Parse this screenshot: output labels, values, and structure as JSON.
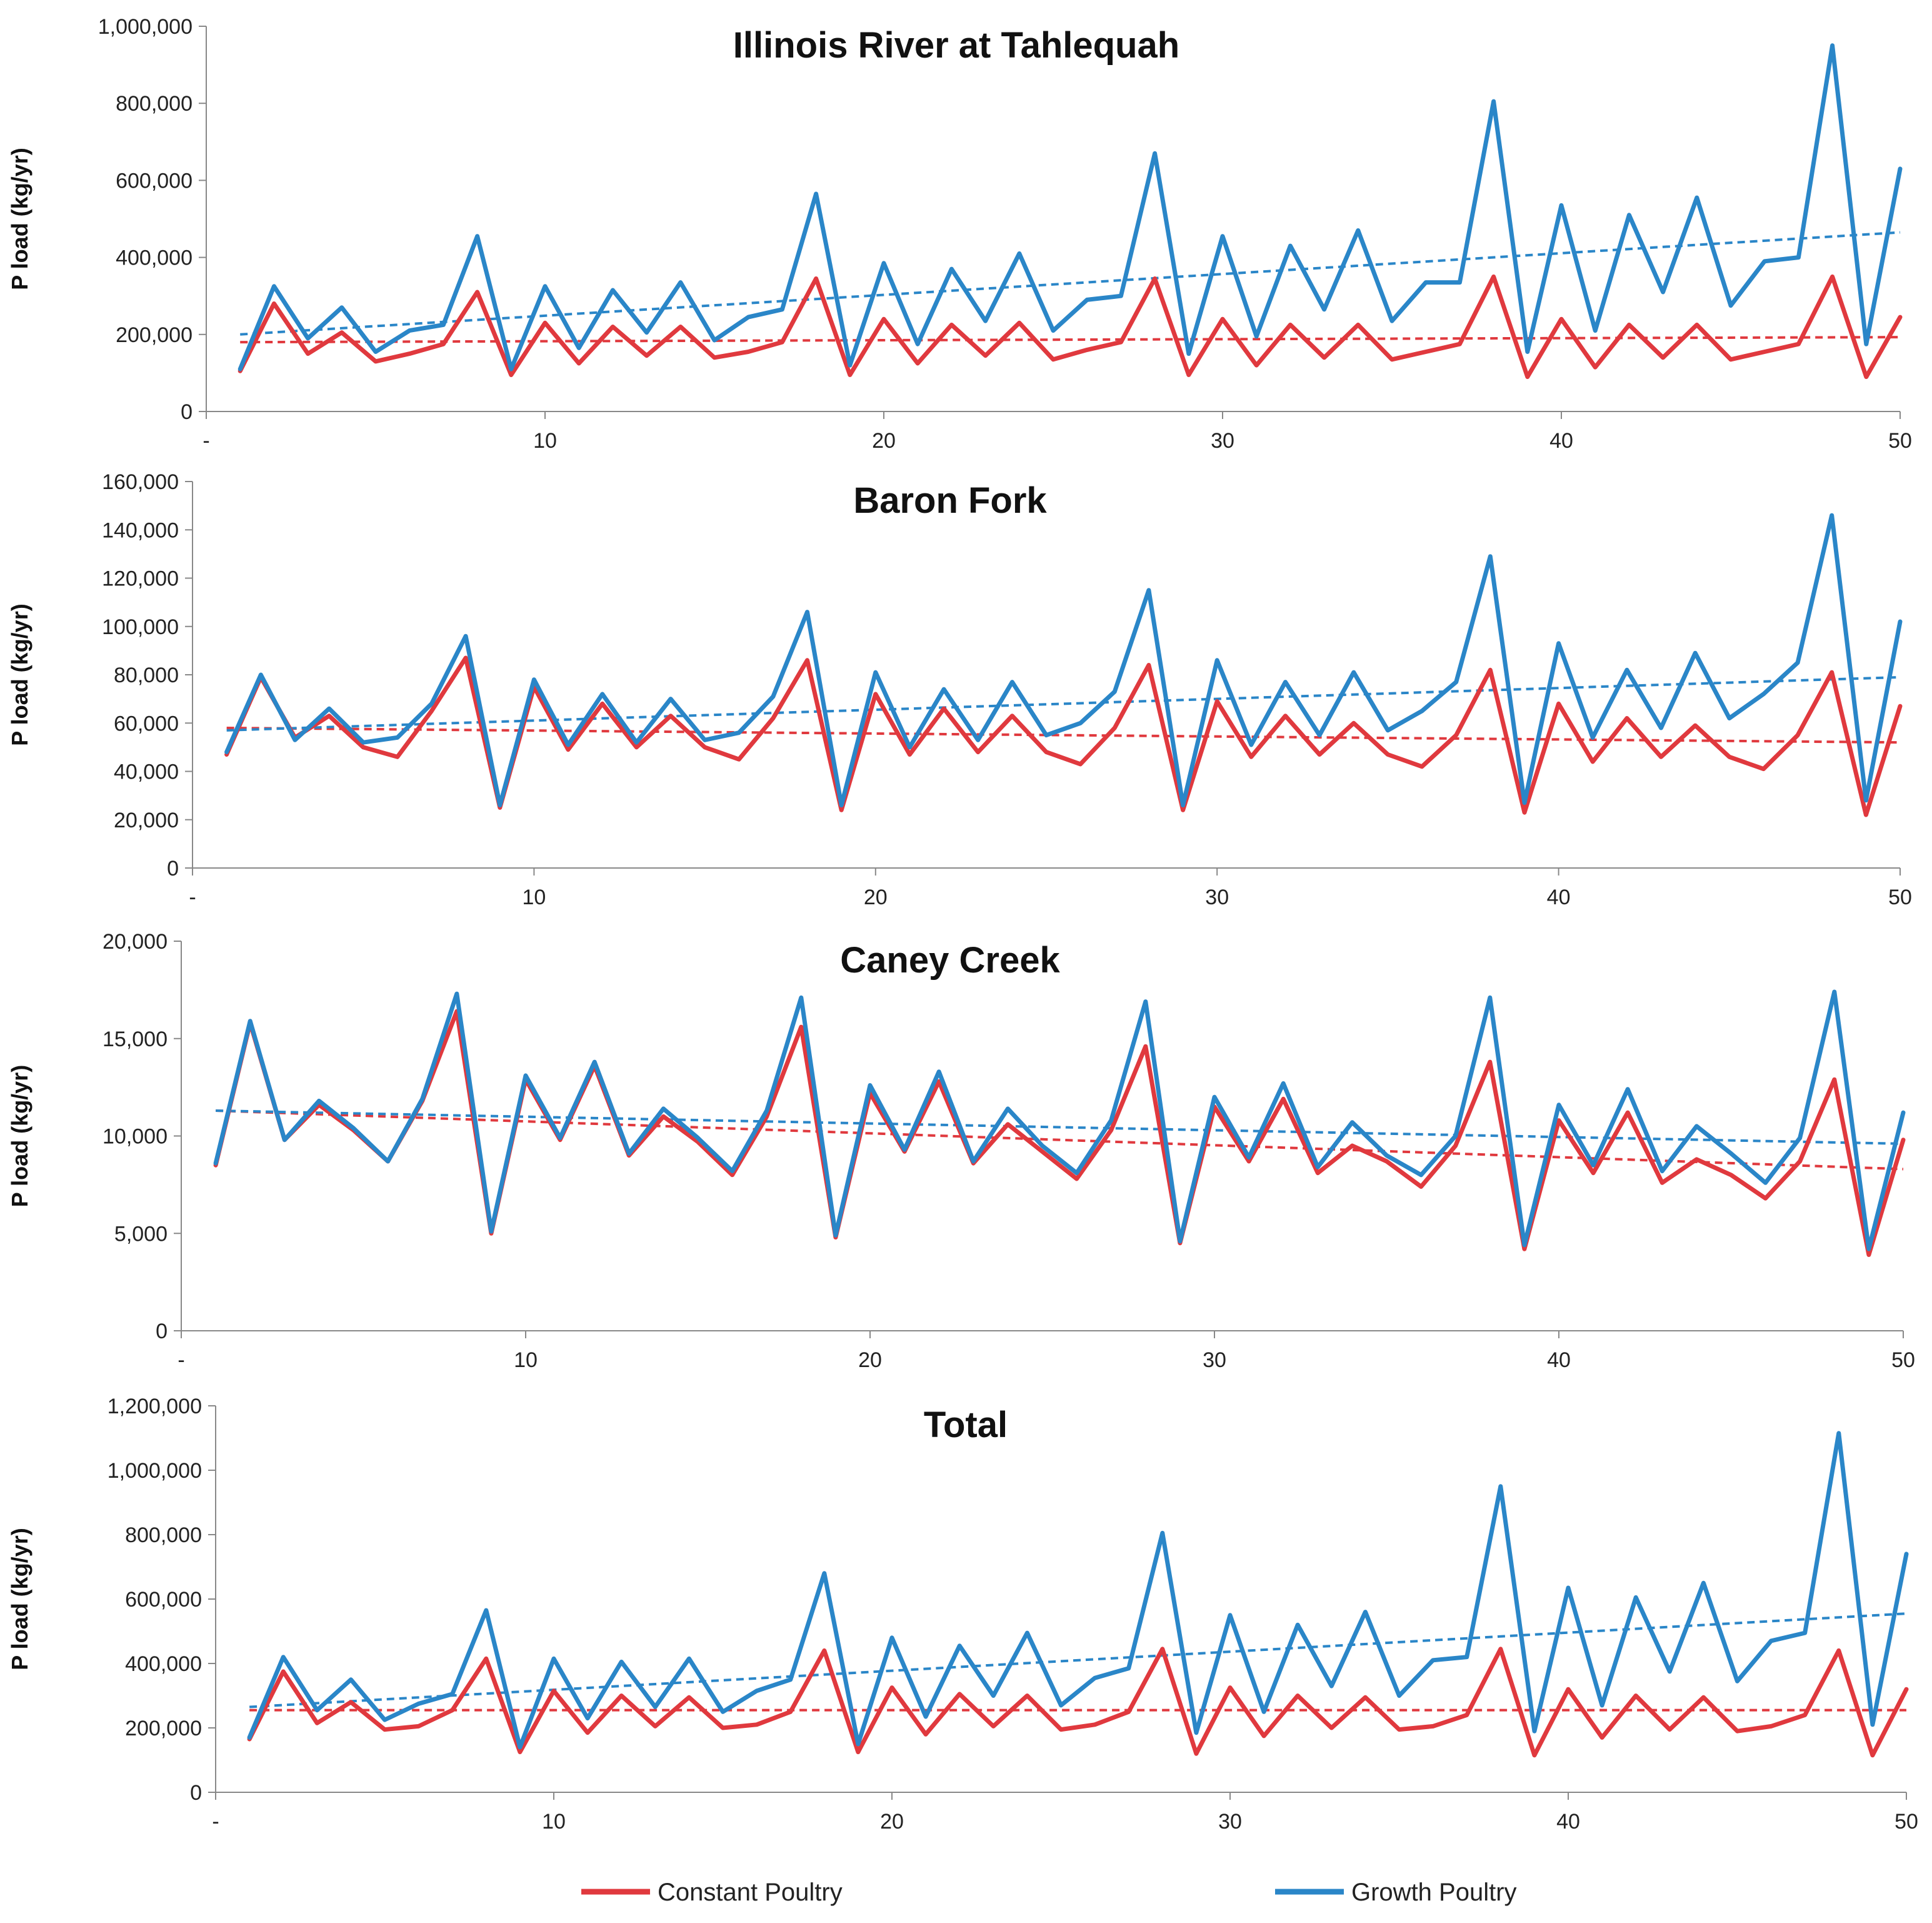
{
  "legend": {
    "constant_label": "Constant Poultry",
    "growth_label": "Growth Poultry"
  },
  "colors": {
    "constant": "#e0393e",
    "growth": "#2a86c8",
    "axis": "#888888"
  },
  "chart_data": [
    {
      "type": "line",
      "title": "Illinois River at Tahlequah",
      "ylabel": "P load (kg/yr)",
      "xlabel": "",
      "xlim": [
        0,
        50
      ],
      "ylim": [
        0,
        1000000
      ],
      "x_ticks": [
        "-",
        "10",
        "20",
        "30",
        "40",
        "50"
      ],
      "y_ticks": [
        "0",
        "200,000",
        "400,000",
        "600,000",
        "800,000",
        "1,000,000"
      ],
      "x": [
        1,
        2,
        3,
        4,
        5,
        6,
        7,
        8,
        9,
        10,
        11,
        12,
        13,
        14,
        15,
        16,
        17,
        18,
        19,
        20,
        21,
        22,
        23,
        24,
        25,
        26,
        27,
        28,
        29,
        30,
        31,
        32,
        33,
        34,
        35,
        36,
        37,
        38,
        39,
        40,
        41,
        42,
        43,
        44,
        45,
        46,
        47,
        48,
        49,
        50
      ],
      "series": [
        {
          "name": "Constant Poultry",
          "values": [
            105000,
            280000,
            150000,
            205000,
            130000,
            150000,
            175000,
            310000,
            95000,
            230000,
            125000,
            220000,
            145000,
            220000,
            140000,
            155000,
            180000,
            345000,
            95000,
            240000,
            125000,
            225000,
            145000,
            230000,
            135000,
            160000,
            180000,
            345000,
            95000,
            240000,
            120000,
            225000,
            140000,
            225000,
            135000,
            155000,
            175000,
            350000,
            90000,
            240000,
            115000,
            225000,
            140000,
            225000,
            135000,
            155000,
            175000,
            350000,
            90000,
            245000
          ]
        },
        {
          "name": "Growth Poultry",
          "values": [
            110000,
            325000,
            190000,
            270000,
            155000,
            210000,
            225000,
            455000,
            110000,
            325000,
            165000,
            315000,
            205000,
            335000,
            185000,
            245000,
            265000,
            565000,
            120000,
            385000,
            175000,
            370000,
            235000,
            410000,
            210000,
            290000,
            300000,
            670000,
            150000,
            455000,
            195000,
            430000,
            265000,
            470000,
            235000,
            335000,
            335000,
            805000,
            155000,
            535000,
            210000,
            510000,
            310000,
            555000,
            275000,
            390000,
            400000,
            950000,
            175000,
            630000
          ]
        }
      ],
      "trendlines": [
        {
          "name": "Constant Poultry trend",
          "start": [
            1,
            180000
          ],
          "end": [
            50,
            193000
          ]
        },
        {
          "name": "Growth Poultry trend",
          "start": [
            1,
            200000
          ],
          "end": [
            50,
            465000
          ]
        }
      ]
    },
    {
      "type": "line",
      "title": "Baron Fork",
      "ylabel": "P load (kg/yr)",
      "xlabel": "",
      "xlim": [
        0,
        50
      ],
      "ylim": [
        0,
        160000
      ],
      "x_ticks": [
        "-",
        "10",
        "20",
        "30",
        "40",
        "50"
      ],
      "y_ticks": [
        "0",
        "20,000",
        "40,000",
        "60,000",
        "80,000",
        "100,000",
        "120,000",
        "140,000",
        "160,000"
      ],
      "x": [
        1,
        2,
        3,
        4,
        5,
        6,
        7,
        8,
        9,
        10,
        11,
        12,
        13,
        14,
        15,
        16,
        17,
        18,
        19,
        20,
        21,
        22,
        23,
        24,
        25,
        26,
        27,
        28,
        29,
        30,
        31,
        32,
        33,
        34,
        35,
        36,
        37,
        38,
        39,
        40,
        41,
        42,
        43,
        44,
        45,
        46,
        47,
        48,
        49,
        50
      ],
      "series": [
        {
          "name": "Constant Poultry",
          "values": [
            47000,
            79000,
            54000,
            63000,
            50000,
            46000,
            65000,
            87000,
            25000,
            75000,
            49000,
            68000,
            50000,
            63000,
            50000,
            45000,
            62000,
            86000,
            24000,
            72000,
            47000,
            66000,
            48000,
            63000,
            48000,
            43000,
            58000,
            84000,
            24000,
            69000,
            46000,
            63000,
            47000,
            60000,
            47000,
            42000,
            55000,
            82000,
            23000,
            68000,
            44000,
            62000,
            46000,
            59000,
            46000,
            41000,
            55000,
            81000,
            22000,
            67000
          ]
        },
        {
          "name": "Growth Poultry",
          "values": [
            48000,
            80000,
            53000,
            66000,
            52000,
            54000,
            68000,
            96000,
            26000,
            78000,
            51000,
            72000,
            52000,
            70000,
            53000,
            56000,
            71000,
            106000,
            26000,
            81000,
            50000,
            74000,
            53000,
            77000,
            55000,
            60000,
            73000,
            115000,
            26000,
            86000,
            51000,
            77000,
            55000,
            81000,
            57000,
            65000,
            77000,
            129000,
            27000,
            93000,
            54000,
            82000,
            58000,
            89000,
            62000,
            72000,
            85000,
            146000,
            28000,
            102000
          ]
        }
      ],
      "trendlines": [
        {
          "name": "Constant Poultry trend",
          "start": [
            1,
            58000
          ],
          "end": [
            50,
            52000
          ]
        },
        {
          "name": "Growth Poultry trend",
          "start": [
            1,
            57000
          ],
          "end": [
            50,
            79000
          ]
        }
      ]
    },
    {
      "type": "line",
      "title": "Caney Creek",
      "ylabel": "P load (kg/yr)",
      "xlabel": "",
      "xlim": [
        0,
        50
      ],
      "ylim": [
        0,
        20000
      ],
      "x_ticks": [
        "-",
        "10",
        "20",
        "30",
        "40",
        "50"
      ],
      "y_ticks": [
        "0",
        "5,000",
        "10,000",
        "15,000",
        "20,000"
      ],
      "x": [
        1,
        2,
        3,
        4,
        5,
        6,
        7,
        8,
        9,
        10,
        11,
        12,
        13,
        14,
        15,
        16,
        17,
        18,
        19,
        20,
        21,
        22,
        23,
        24,
        25,
        26,
        27,
        28,
        29,
        30,
        31,
        32,
        33,
        34,
        35,
        36,
        37,
        38,
        39,
        40,
        41,
        42,
        43,
        44,
        45,
        46,
        47,
        48,
        49,
        50
      ],
      "series": [
        {
          "name": "Constant Poultry",
          "values": [
            8500,
            15800,
            9800,
            11600,
            10300,
            8700,
            11800,
            16400,
            5000,
            12900,
            9800,
            13600,
            9000,
            11000,
            9700,
            8000,
            11000,
            15600,
            4800,
            12200,
            9200,
            12800,
            8600,
            10600,
            9200,
            7800,
            10300,
            14600,
            4500,
            11500,
            8700,
            11900,
            8100,
            9500,
            8700,
            7400,
            9500,
            13800,
            4200,
            10800,
            8100,
            11200,
            7600,
            8800,
            8000,
            6800,
            8700,
            12900,
            3900,
            9800
          ]
        },
        {
          "name": "Growth Poultry",
          "values": [
            8600,
            15900,
            9800,
            11800,
            10400,
            8700,
            11900,
            17300,
            5100,
            13100,
            9900,
            13800,
            9100,
            11400,
            9900,
            8200,
            11300,
            17100,
            4900,
            12600,
            9300,
            13300,
            8700,
            11400,
            9500,
            8100,
            10800,
            16900,
            4600,
            12000,
            8900,
            12700,
            8400,
            10700,
            9000,
            8000,
            10000,
            17100,
            4400,
            11600,
            8500,
            12400,
            8200,
            10500,
            9100,
            7600,
            9900,
            17400,
            4200,
            11200
          ]
        }
      ],
      "trendlines": [
        {
          "name": "Constant Poultry trend",
          "start": [
            1,
            11300
          ],
          "end": [
            50,
            8300
          ]
        },
        {
          "name": "Growth Poultry trend",
          "start": [
            1,
            11300
          ],
          "end": [
            50,
            9600
          ]
        }
      ]
    },
    {
      "type": "line",
      "title": "Total",
      "ylabel": "P load (kg/yr)",
      "xlabel": "",
      "xlim": [
        0,
        50
      ],
      "ylim": [
        0,
        1200000
      ],
      "x_ticks": [
        "-",
        "10",
        "20",
        "30",
        "40",
        "50"
      ],
      "y_ticks": [
        "0",
        "200,000",
        "400,000",
        "600,000",
        "800,000",
        "1,000,000",
        "1,200,000"
      ],
      "x": [
        1,
        2,
        3,
        4,
        5,
        6,
        7,
        8,
        9,
        10,
        11,
        12,
        13,
        14,
        15,
        16,
        17,
        18,
        19,
        20,
        21,
        22,
        23,
        24,
        25,
        26,
        27,
        28,
        29,
        30,
        31,
        32,
        33,
        34,
        35,
        36,
        37,
        38,
        39,
        40,
        41,
        42,
        43,
        44,
        45,
        46,
        47,
        48,
        49,
        50
      ],
      "series": [
        {
          "name": "Constant Poultry",
          "values": [
            165000,
            375000,
            215000,
            280000,
            195000,
            205000,
            255000,
            415000,
            125000,
            315000,
            185000,
            300000,
            205000,
            295000,
            200000,
            210000,
            250000,
            440000,
            125000,
            325000,
            180000,
            305000,
            205000,
            300000,
            195000,
            210000,
            250000,
            445000,
            120000,
            325000,
            175000,
            300000,
            200000,
            295000,
            195000,
            205000,
            240000,
            445000,
            115000,
            320000,
            170000,
            300000,
            195000,
            295000,
            190000,
            205000,
            240000,
            440000,
            115000,
            320000
          ]
        },
        {
          "name": "Growth Poultry",
          "values": [
            170000,
            420000,
            255000,
            350000,
            225000,
            275000,
            305000,
            565000,
            140000,
            415000,
            230000,
            405000,
            265000,
            415000,
            250000,
            315000,
            350000,
            680000,
            150000,
            480000,
            235000,
            455000,
            300000,
            495000,
            270000,
            355000,
            385000,
            805000,
            185000,
            550000,
            250000,
            520000,
            330000,
            560000,
            300000,
            410000,
            420000,
            950000,
            190000,
            635000,
            270000,
            605000,
            375000,
            650000,
            345000,
            470000,
            495000,
            1115000,
            210000,
            740000
          ]
        }
      ],
      "trendlines": [
        {
          "name": "Constant Poultry trend",
          "start": [
            1,
            255000
          ],
          "end": [
            50,
            255000
          ]
        },
        {
          "name": "Growth Poultry trend",
          "start": [
            1,
            265000
          ],
          "end": [
            50,
            555000
          ]
        }
      ]
    }
  ]
}
